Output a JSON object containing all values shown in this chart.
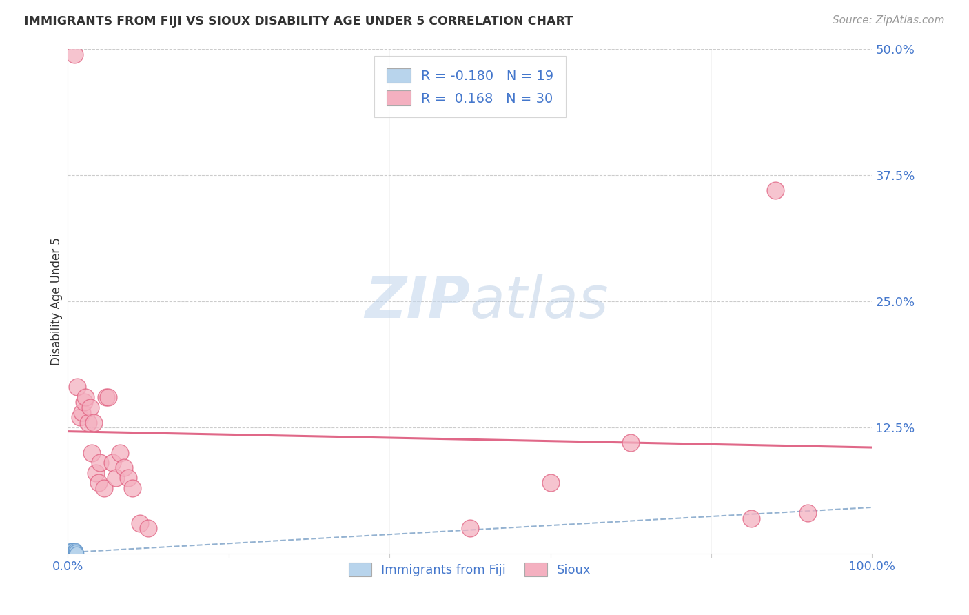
{
  "title": "IMMIGRANTS FROM FIJI VS SIOUX DISABILITY AGE UNDER 5 CORRELATION CHART",
  "source": "Source: ZipAtlas.com",
  "ylabel": "Disability Age Under 5",
  "fiji_R": -0.18,
  "fiji_N": 19,
  "sioux_R": 0.168,
  "sioux_N": 30,
  "fiji_color": "#b8d4ec",
  "sioux_color": "#f4b0c0",
  "fiji_edge_color": "#6699cc",
  "sioux_edge_color": "#e06080",
  "fiji_trend_color": "#88aacc",
  "sioux_trend_color": "#e06888",
  "fiji_points_x": [
    0.002,
    0.002,
    0.003,
    0.003,
    0.004,
    0.004,
    0.005,
    0.005,
    0.006,
    0.006,
    0.007,
    0.007,
    0.008,
    0.008,
    0.009,
    0.009,
    0.01,
    0.01,
    0.011
  ],
  "fiji_points_y": [
    0.0,
    0.001,
    0.0,
    0.002,
    0.001,
    0.003,
    0.0,
    0.001,
    0.002,
    0.003,
    0.001,
    0.002,
    0.0,
    0.001,
    0.002,
    0.003,
    0.001,
    0.002,
    0.0
  ],
  "sioux_points_x": [
    0.008,
    0.012,
    0.015,
    0.018,
    0.02,
    0.022,
    0.025,
    0.028,
    0.03,
    0.032,
    0.035,
    0.038,
    0.04,
    0.045,
    0.048,
    0.05,
    0.055,
    0.06,
    0.065,
    0.07,
    0.075,
    0.08,
    0.09,
    0.1,
    0.5,
    0.6,
    0.7,
    0.85,
    0.88,
    0.92
  ],
  "sioux_points_y": [
    0.495,
    0.165,
    0.135,
    0.14,
    0.15,
    0.155,
    0.13,
    0.145,
    0.1,
    0.13,
    0.08,
    0.07,
    0.09,
    0.065,
    0.155,
    0.155,
    0.09,
    0.075,
    0.1,
    0.085,
    0.075,
    0.065,
    0.03,
    0.025,
    0.025,
    0.07,
    0.11,
    0.035,
    0.36,
    0.04
  ],
  "background_color": "#ffffff",
  "label_color": "#4477cc",
  "watermark_color": "#dce8f5",
  "grid_color": "#cccccc",
  "title_color": "#333333",
  "source_color": "#999999",
  "ylim": [
    0.0,
    0.5
  ],
  "xlim": [
    0.0,
    1.0
  ],
  "ytick_positions": [
    0.0,
    0.125,
    0.25,
    0.375,
    0.5
  ],
  "ytick_labels": [
    "",
    "12.5%",
    "25.0%",
    "37.5%",
    "50.0%"
  ],
  "xtick_positions": [
    0.0,
    0.2,
    0.4,
    0.6,
    0.8,
    1.0
  ],
  "xtick_labels_show": [
    "0.0%",
    "",
    "",
    "",
    "",
    "100.0%"
  ]
}
